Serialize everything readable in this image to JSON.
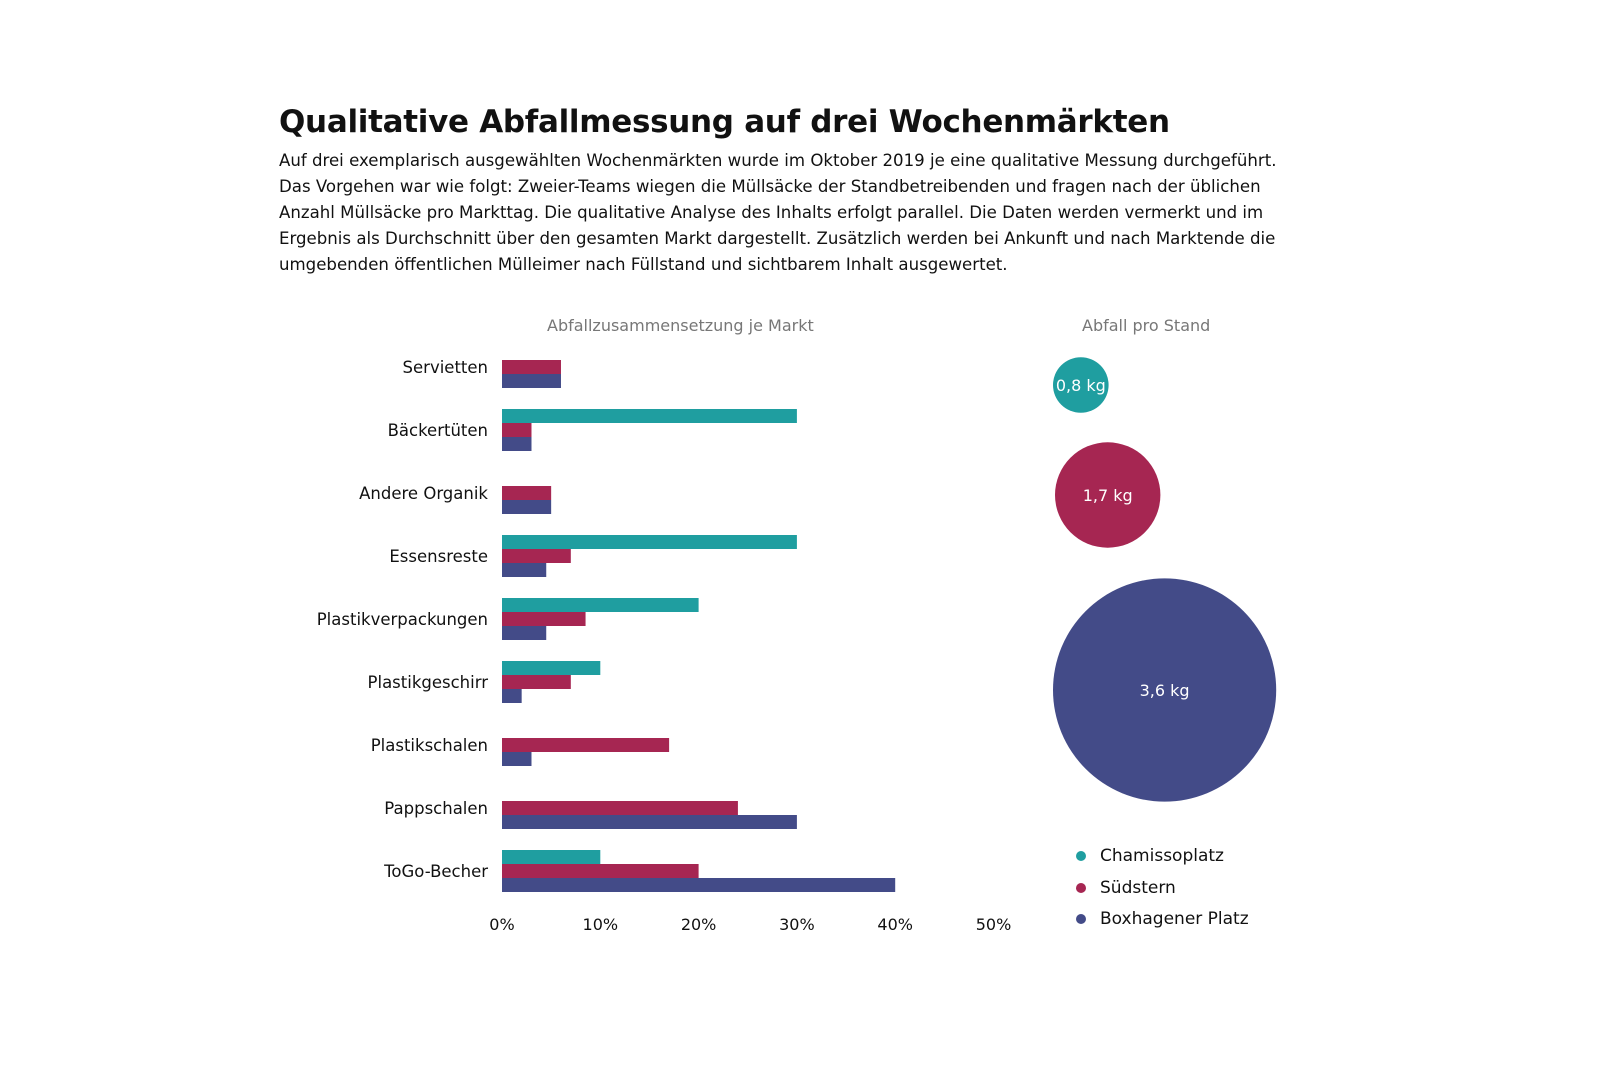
{
  "title": "Qualitative Abfallmessung auf drei Wochenmärkten",
  "description": "Auf drei exemplarisch ausgewählten Wochenmärkten wurde im Oktober 2019 je eine qualitative Messung durchgeführt. Das Vorgehen war wie folgt:  Zweier-Teams wiegen die Müllsäcke der Standbetreibenden und fragen nach der üblichen Anzahl Müllsäcke pro Markttag. Die qualitative Analyse des Inhalts erfolgt parallel. Die Daten werden vermerkt und im Ergebnis als Durchschnitt über den gesamten Markt dargestellt. Zusätzlich werden bei Ankunft und nach Marktende die umgebenden öffentlichen Mülleimer nach Füllstand und sichtbarem Inhalt ausgewertet.",
  "colors": {
    "Chamissoplatz": "#1f9ea0",
    "Südstern": "#a62652",
    "Boxhagener Platz": "#434b88"
  },
  "chart_data": [
    {
      "type": "bar",
      "orientation": "horizontal",
      "title": "Abfallzusammensetzung je Markt",
      "categories": [
        "Servietten",
        "Bäckertüten",
        "Andere Organik",
        "Essensreste",
        "Plastikverpackungen",
        "Plastikgeschirr",
        "Plastikschalen",
        "Pappschalen",
        "ToGo-Becher"
      ],
      "series": [
        {
          "name": "Chamissoplatz",
          "values": [
            0,
            30,
            0,
            30,
            20,
            10,
            0,
            0,
            10
          ]
        },
        {
          "name": "Südstern",
          "values": [
            6,
            3,
            5,
            7,
            8.5,
            7,
            17,
            24,
            20
          ]
        },
        {
          "name": "Boxhagener Platz",
          "values": [
            6,
            3,
            5,
            4.5,
            4.5,
            2,
            3,
            30,
            40
          ]
        }
      ],
      "xlim": [
        0,
        50
      ],
      "xticks": [
        "0%",
        "10%",
        "20%",
        "30%",
        "40%",
        "50%"
      ],
      "grid": false,
      "legend": "bottom-right"
    },
    {
      "type": "bubble",
      "title": "Abfall pro Stand",
      "series": [
        {
          "name": "Chamissoplatz",
          "value": 0.8,
          "label": "0,8 kg"
        },
        {
          "name": "Südstern",
          "value": 1.7,
          "label": "1,7 kg"
        },
        {
          "name": "Boxhagener Platz",
          "value": 3.6,
          "label": "3,6 kg"
        }
      ]
    }
  ]
}
